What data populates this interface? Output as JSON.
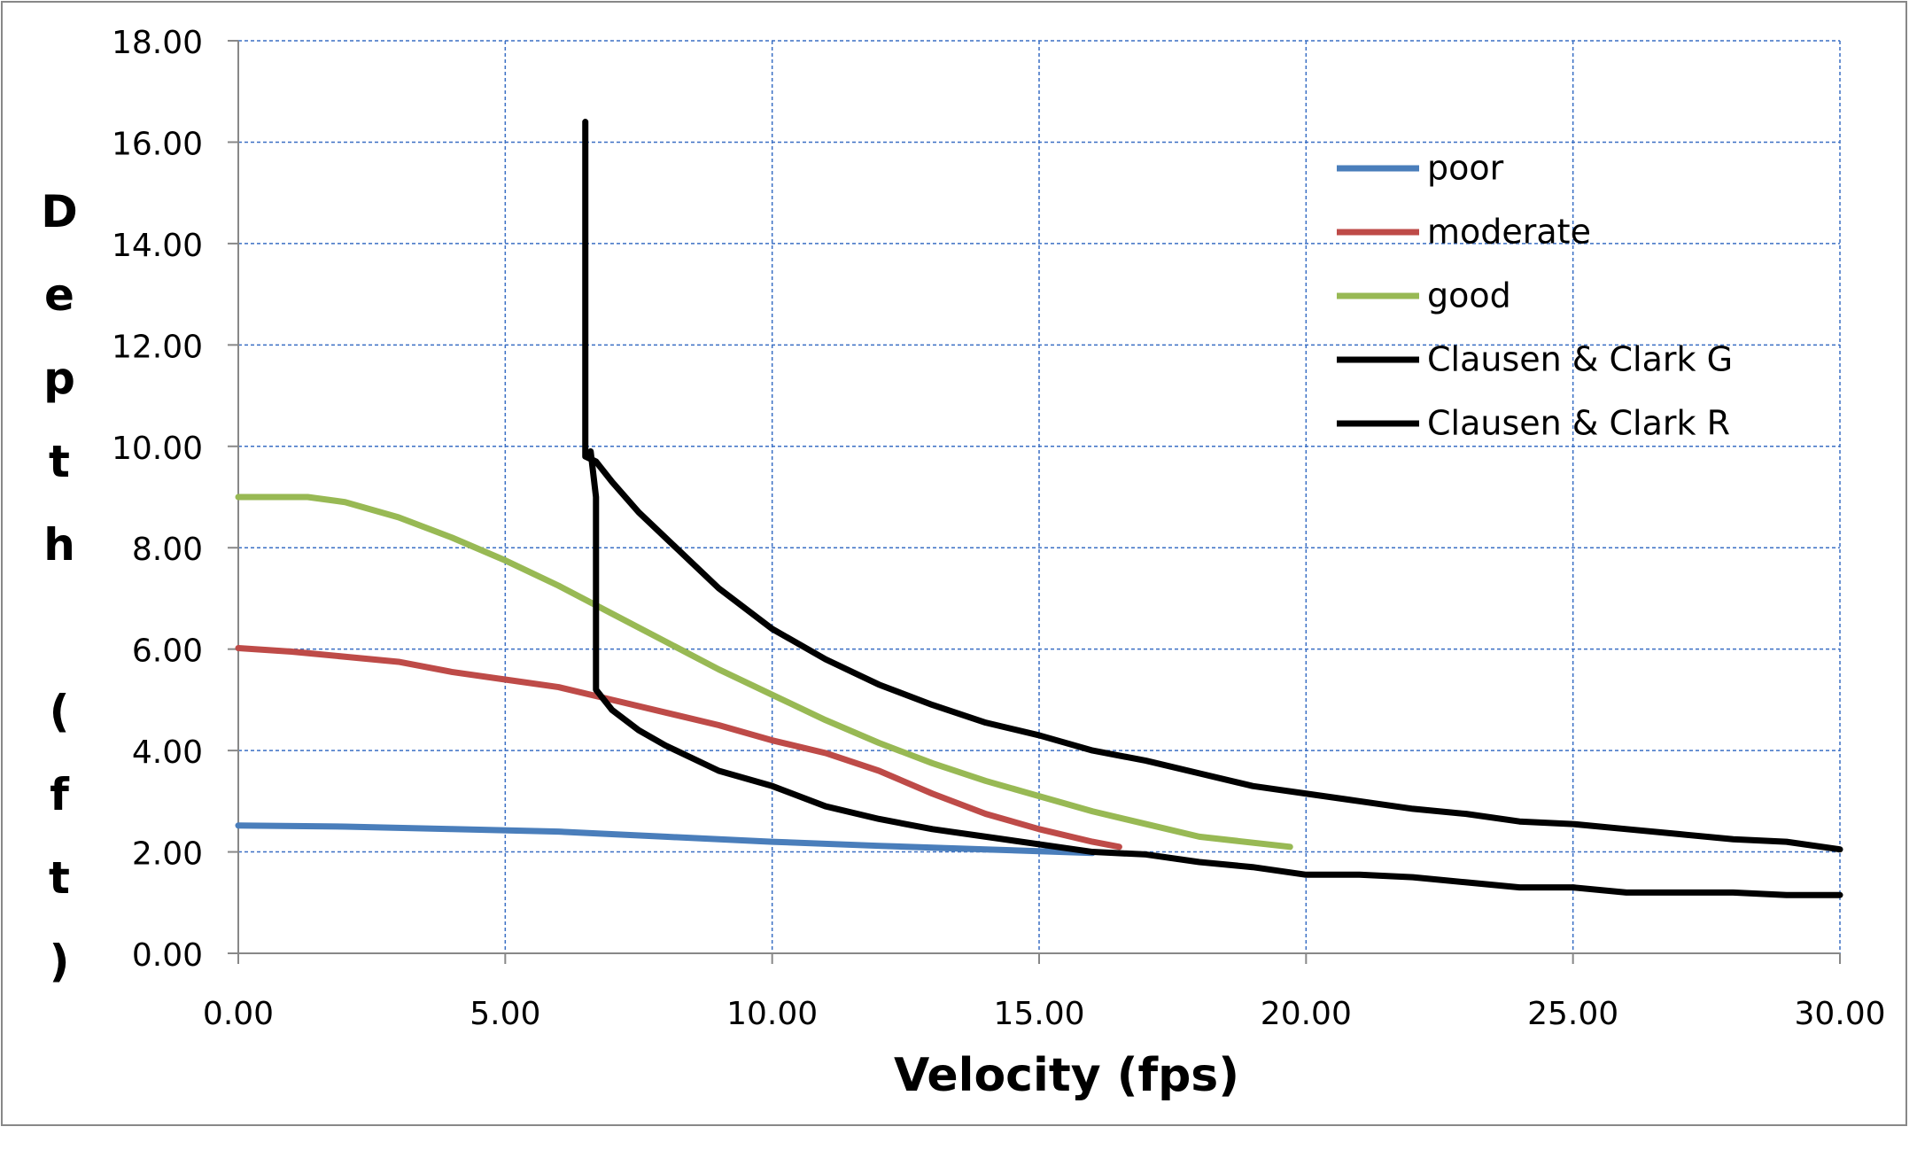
{
  "chart_data": {
    "type": "line",
    "x_label": "Velocity (fps)",
    "y_label": "Depth (ft)",
    "xlim": [
      0,
      30
    ],
    "ylim": [
      0,
      18
    ],
    "xticks": [
      {
        "value": 0,
        "label": "0.00"
      },
      {
        "value": 5,
        "label": "5.00"
      },
      {
        "value": 10,
        "label": "10.00"
      },
      {
        "value": 15,
        "label": "15.00"
      },
      {
        "value": 20,
        "label": "20.00"
      },
      {
        "value": 25,
        "label": "25.00"
      },
      {
        "value": 30,
        "label": "30.00"
      }
    ],
    "yticks": [
      {
        "value": 0,
        "label": "0.00"
      },
      {
        "value": 2,
        "label": "2.00"
      },
      {
        "value": 4,
        "label": "4.00"
      },
      {
        "value": 6,
        "label": "6.00"
      },
      {
        "value": 8,
        "label": "8.00"
      },
      {
        "value": 10,
        "label": "10.00"
      },
      {
        "value": 12,
        "label": "12.00"
      },
      {
        "value": 14,
        "label": "14.00"
      },
      {
        "value": 16,
        "label": "16.00"
      },
      {
        "value": 18,
        "label": "18.00"
      }
    ],
    "grid": true,
    "legend": "upper right",
    "series": [
      {
        "name": "poor",
        "color": "#4a7ebb",
        "x": [
          0,
          2,
          4,
          6,
          8,
          10,
          12,
          14,
          16
        ],
        "values": [
          2.52,
          2.5,
          2.45,
          2.4,
          2.3,
          2.2,
          2.12,
          2.05,
          1.98
        ]
      },
      {
        "name": "moderate",
        "color": "#be4b48",
        "x": [
          0,
          1,
          2,
          3,
          4,
          5,
          6,
          7,
          8,
          9,
          10,
          11,
          12,
          13,
          14,
          15,
          16,
          16.5
        ],
        "values": [
          6.02,
          5.95,
          5.85,
          5.75,
          5.55,
          5.4,
          5.25,
          5.0,
          4.75,
          4.5,
          4.2,
          3.95,
          3.6,
          3.15,
          2.75,
          2.45,
          2.2,
          2.1
        ]
      },
      {
        "name": "good",
        "color": "#98b954",
        "x": [
          0,
          1.3,
          2,
          3,
          4,
          5,
          6,
          7,
          8,
          9,
          10,
          11,
          12,
          13,
          14,
          15,
          16,
          17,
          18,
          19.7
        ],
        "values": [
          9.0,
          9.0,
          8.9,
          8.6,
          8.2,
          7.75,
          7.25,
          6.7,
          6.15,
          5.6,
          5.1,
          4.6,
          4.15,
          3.75,
          3.4,
          3.1,
          2.8,
          2.55,
          2.3,
          2.1
        ]
      },
      {
        "name": "Clausen & Clark G",
        "color": "#000000",
        "x": [
          6.5,
          6.5,
          6.7,
          7,
          7.5,
          8,
          9,
          10,
          11,
          12,
          13,
          14,
          15,
          16,
          17,
          18,
          19,
          20,
          21,
          22,
          23,
          24,
          25,
          26,
          27,
          28,
          29,
          30
        ],
        "values": [
          16.4,
          9.8,
          9.7,
          9.3,
          8.7,
          8.2,
          7.2,
          6.4,
          5.8,
          5.3,
          4.9,
          4.55,
          4.3,
          4.0,
          3.8,
          3.55,
          3.3,
          3.15,
          3.0,
          2.85,
          2.75,
          2.6,
          2.55,
          2.45,
          2.35,
          2.25,
          2.2,
          2.05
        ]
      },
      {
        "name": "Clausen & Clark R",
        "color": "#000000",
        "x": [
          6.6,
          6.7,
          6.7,
          7,
          7.5,
          8,
          9,
          10,
          11,
          12,
          13,
          14,
          15,
          16,
          17,
          18,
          19,
          20,
          21,
          22,
          23,
          24,
          25,
          26,
          27,
          28,
          29,
          30
        ],
        "values": [
          9.9,
          9.0,
          5.2,
          4.8,
          4.4,
          4.1,
          3.6,
          3.3,
          2.9,
          2.65,
          2.45,
          2.3,
          2.15,
          2.0,
          1.95,
          1.8,
          1.7,
          1.55,
          1.55,
          1.5,
          1.4,
          1.3,
          1.3,
          1.2,
          1.2,
          1.2,
          1.15,
          1.15
        ]
      }
    ]
  }
}
